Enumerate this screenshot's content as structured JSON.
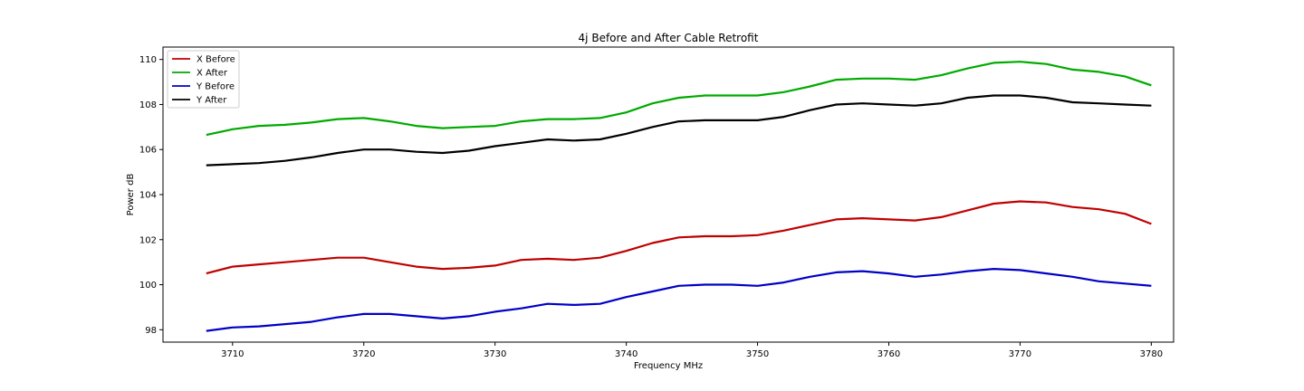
{
  "chart_data": {
    "type": "line",
    "title": "4j Before and After Cable Retrofit",
    "xlabel": "Frequency MHz",
    "ylabel": "Power dB",
    "xlim": [
      3704.7,
      3781.7
    ],
    "ylim": [
      97.45,
      110.55
    ],
    "xticks": [
      3710,
      3720,
      3730,
      3740,
      3750,
      3760,
      3770,
      3780
    ],
    "yticks": [
      98,
      100,
      102,
      104,
      106,
      108,
      110
    ],
    "grid": false,
    "legend_position": "top-left",
    "x": [
      3708,
      3710,
      3712,
      3714,
      3716,
      3718,
      3720,
      3722,
      3724,
      3726,
      3728,
      3730,
      3732,
      3734,
      3736,
      3738,
      3740,
      3742,
      3744,
      3746,
      3748,
      3750,
      3752,
      3754,
      3756,
      3758,
      3760,
      3762,
      3764,
      3766,
      3768,
      3770,
      3772,
      3774,
      3776,
      3778,
      3780
    ],
    "series": [
      {
        "name": "X Before",
        "color": "#c00000",
        "values": [
          100.5,
          100.8,
          100.9,
          101.0,
          101.1,
          101.2,
          101.2,
          101.0,
          100.8,
          100.7,
          100.75,
          100.85,
          101.1,
          101.15,
          101.1,
          101.2,
          101.5,
          101.85,
          102.1,
          102.15,
          102.15,
          102.2,
          102.4,
          102.65,
          102.9,
          102.95,
          102.9,
          102.85,
          103.0,
          103.3,
          103.6,
          103.7,
          103.65,
          103.45,
          103.35,
          103.15,
          102.7
        ]
      },
      {
        "name": "X After",
        "color": "#00aa00",
        "values": [
          106.65,
          106.9,
          107.05,
          107.1,
          107.2,
          107.35,
          107.4,
          107.25,
          107.05,
          106.95,
          107.0,
          107.05,
          107.25,
          107.35,
          107.35,
          107.4,
          107.65,
          108.05,
          108.3,
          108.4,
          108.4,
          108.4,
          108.55,
          108.8,
          109.1,
          109.15,
          109.15,
          109.1,
          109.3,
          109.6,
          109.85,
          109.9,
          109.8,
          109.55,
          109.45,
          109.25,
          108.85
        ]
      },
      {
        "name": "Y Before",
        "color": "#0000c8",
        "values": [
          97.95,
          98.1,
          98.15,
          98.25,
          98.35,
          98.55,
          98.7,
          98.7,
          98.6,
          98.5,
          98.6,
          98.8,
          98.95,
          99.15,
          99.1,
          99.15,
          99.45,
          99.7,
          99.95,
          100.0,
          100.0,
          99.95,
          100.1,
          100.35,
          100.55,
          100.6,
          100.5,
          100.35,
          100.45,
          100.6,
          100.7,
          100.65,
          100.5,
          100.35,
          100.15,
          100.05,
          99.95
        ]
      },
      {
        "name": "Y After",
        "color": "#000000",
        "values": [
          105.3,
          105.35,
          105.4,
          105.5,
          105.65,
          105.85,
          106.0,
          106.0,
          105.9,
          105.85,
          105.95,
          106.15,
          106.3,
          106.45,
          106.4,
          106.45,
          106.7,
          107.0,
          107.25,
          107.3,
          107.3,
          107.3,
          107.45,
          107.75,
          108.0,
          108.05,
          108.0,
          107.95,
          108.05,
          108.3,
          108.4,
          108.4,
          108.3,
          108.1,
          108.05,
          108.0,
          107.95
        ]
      }
    ]
  }
}
